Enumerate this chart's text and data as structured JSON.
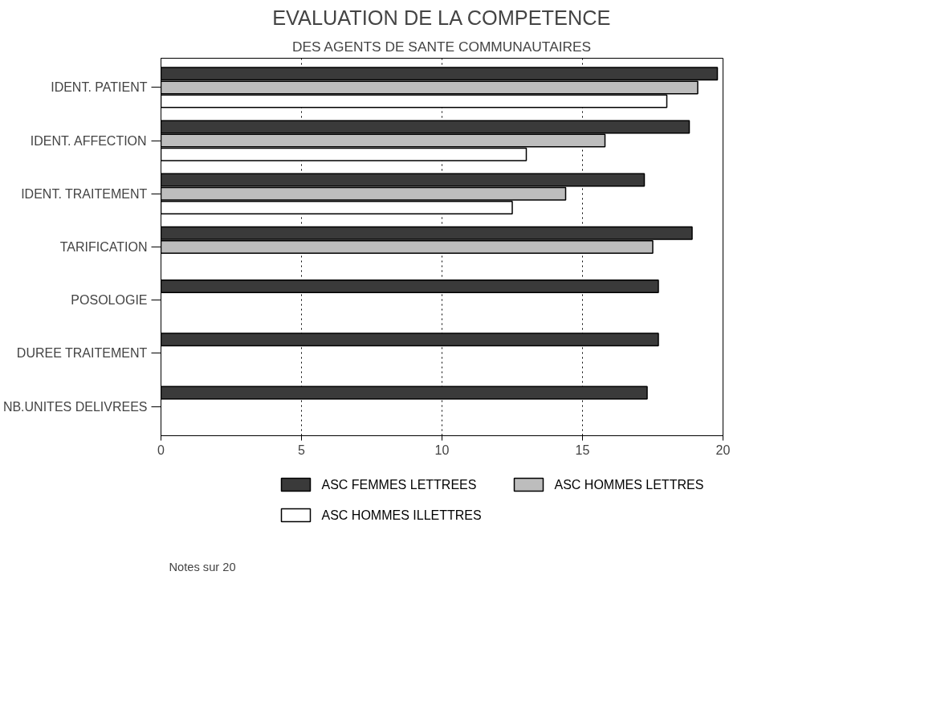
{
  "chart_data": {
    "type": "bar",
    "orientation": "horizontal",
    "title": "EVALUATION DE LA COMPETENCE",
    "subtitle": "DES AGENTS DE SANTE COMMUNAUTAIRES",
    "categories": [
      "IDENT. PATIENT",
      "IDENT. AFFECTION",
      "IDENT. TRAITEMENT",
      "TARIFICATION",
      "POSOLOGIE",
      "DUREE TRAITEMENT",
      "NB.UNITES DELIVREES"
    ],
    "series": [
      {
        "name": "ASC FEMMES LETTREES",
        "color": "#3a3a3a",
        "values": [
          19.8,
          18.8,
          17.2,
          18.9,
          17.7,
          17.7,
          17.3
        ]
      },
      {
        "name": "ASC HOMMES LETTRES",
        "color": "#bdbdbd",
        "values": [
          19.1,
          15.8,
          14.4,
          17.5,
          null,
          null,
          null
        ]
      },
      {
        "name": "ASC HOMMES ILLETTRES",
        "color": "#ffffff",
        "values": [
          18.0,
          13.0,
          12.5,
          null,
          null,
          null,
          null
        ]
      }
    ],
    "xlim": [
      0,
      20
    ],
    "xticks": [
      0,
      5,
      10,
      15,
      20
    ],
    "grid": "x",
    "legend": "bottom",
    "annotations": [
      "Notes sur 20"
    ]
  }
}
